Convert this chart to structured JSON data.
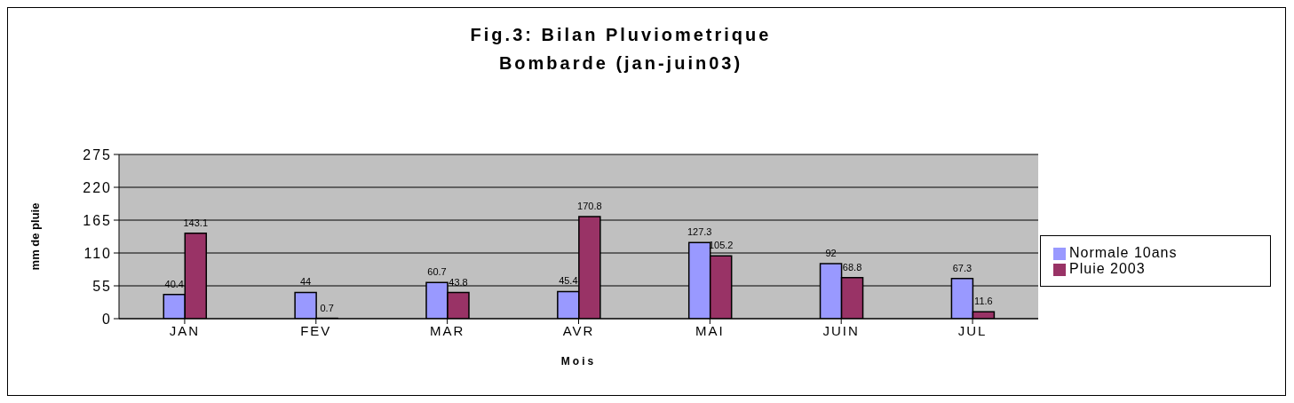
{
  "chart_data": {
    "type": "bar",
    "title": "Fig.3: Bilan Pluviometrique",
    "subtitle": "Bombarde (jan-juin03)",
    "xlabel": "Mois",
    "ylabel": "mm de pluie",
    "categories": [
      "JAN",
      "FEV",
      "MAR",
      "AVR",
      "MAI",
      "JUIN",
      "JUL"
    ],
    "series": [
      {
        "name": "Normale 10ans",
        "color": "#9999ff",
        "values": [
          40.4,
          44,
          60.7,
          45.4,
          127.3,
          92,
          67.3
        ]
      },
      {
        "name": "Pluie  2003",
        "color": "#993366",
        "values": [
          143.1,
          0.7,
          43.8,
          170.8,
          105.2,
          68.8,
          11.6
        ]
      }
    ],
    "ylim": [
      0,
      275
    ],
    "yticks": [
      0,
      55,
      110,
      165,
      220,
      275
    ],
    "grid": "y",
    "legend": "right",
    "data_labels": true
  }
}
